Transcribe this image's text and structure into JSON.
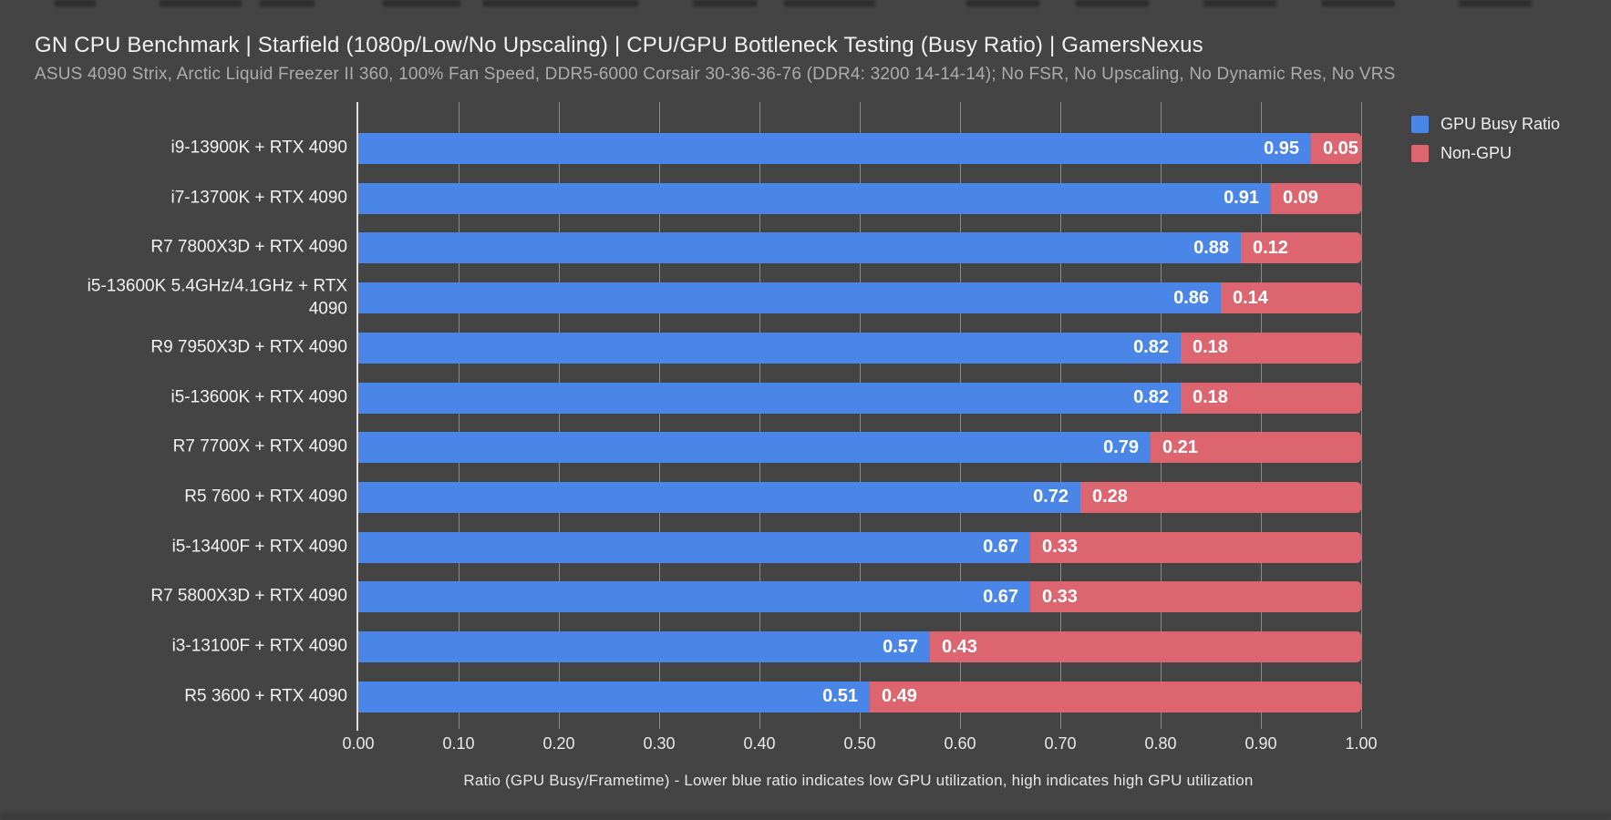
{
  "title": "GN CPU Benchmark | Starfield (1080p/Low/No Upscaling) | CPU/GPU Bottleneck Testing (Busy Ratio) | GamersNexus",
  "subtitle": "ASUS 4090 Strix, Arctic Liquid Freezer II 360, 100% Fan Speed, DDR5-6000 Corsair 30-36-36-76 (DDR4: 3200 14-14-14); No FSR, No Upscaling, No Dynamic Res, No VRS",
  "legend": [
    {
      "label": "GPU Busy Ratio",
      "color": "#4a86e8"
    },
    {
      "label": "Non-GPU",
      "color": "#dd6570"
    }
  ],
  "chart_data": {
    "type": "bar",
    "orientation": "horizontal",
    "stacked": true,
    "title": "GN CPU Benchmark | Starfield (1080p/Low/No Upscaling) | CPU/GPU Bottleneck Testing (Busy Ratio) | GamersNexus",
    "categories": [
      "i9-13900K + RTX 4090",
      "i7-13700K + RTX 4090",
      "R7 7800X3D + RTX 4090",
      "i5-13600K 5.4GHz/4.1GHz + RTX 4090",
      "R9 7950X3D + RTX 4090",
      "i5-13600K + RTX 4090",
      "R7 7700X + RTX 4090",
      "R5 7600 + RTX 4090",
      "i5-13400F + RTX 4090",
      "R7 5800X3D + RTX 4090",
      "i3-13100F + RTX 4090",
      "R5 3600 + RTX 4090"
    ],
    "series": [
      {
        "name": "GPU Busy Ratio",
        "color": "#4a86e8",
        "values": [
          0.95,
          0.91,
          0.88,
          0.86,
          0.82,
          0.82,
          0.79,
          0.72,
          0.67,
          0.67,
          0.57,
          0.51
        ]
      },
      {
        "name": "Non-GPU",
        "color": "#dd6570",
        "values": [
          0.05,
          0.09,
          0.12,
          0.14,
          0.18,
          0.18,
          0.21,
          0.28,
          0.33,
          0.33,
          0.43,
          0.49
        ]
      }
    ],
    "xlabel": "Ratio (GPU Busy/Frametime) - Lower blue ratio indicates low GPU utilization, high indicates high GPU utilization",
    "xlim": [
      0.0,
      1.0
    ],
    "xticks": [
      "0.00",
      "0.10",
      "0.20",
      "0.30",
      "0.40",
      "0.50",
      "0.60",
      "0.70",
      "0.80",
      "0.90",
      "1.00"
    ],
    "grid": true,
    "legend_position": "top-right"
  },
  "colors": {
    "background": "#444444",
    "bar_blue": "#4a86e8",
    "bar_red": "#dd6570",
    "gridline": "#8a8a8a",
    "axis_line": "#dedede",
    "title_text": "#f1f1f1",
    "subtitle_text": "#acacac",
    "value_text": "#ffffff"
  }
}
